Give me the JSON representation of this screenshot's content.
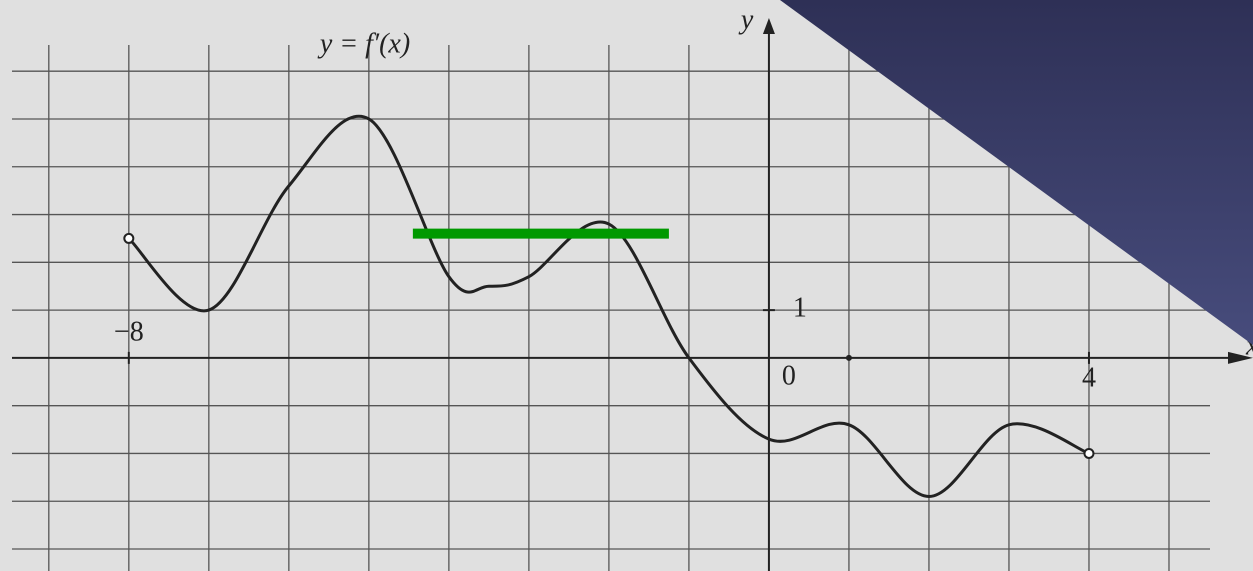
{
  "chart_data": {
    "type": "line",
    "title": "y = f′(x)",
    "x_axis_label": "x",
    "y_axis_label": "y",
    "origin_label": "0",
    "x": [
      -8,
      -7,
      -6,
      -5,
      -4,
      -3.5,
      -3,
      -2,
      -1,
      0,
      1,
      2,
      3,
      4
    ],
    "series": [
      {
        "name": "f′(x)",
        "color": "#222222",
        "values": [
          2.5,
          1,
          3.6,
          5,
          1.7,
          1.5,
          1.7,
          2.8,
          0,
          -1.7,
          -1.4,
          -2.9,
          -1.4,
          -2
        ]
      }
    ],
    "highlight_segment": {
      "x": [
        -4.45,
        -1.25
      ],
      "y": 2.6,
      "color": "#009900"
    },
    "xlim": [
      -9.61,
      6.05
    ],
    "ylim": [
      -4.46,
      7.49
    ],
    "xticks": [
      {
        "value": -8,
        "label": "−8"
      },
      4
    ],
    "yticks": [
      1
    ],
    "grid_x": [
      -9,
      -8,
      -7,
      -6,
      -5,
      -4,
      -3,
      -2,
      -1,
      0,
      1,
      2,
      3,
      4,
      5
    ],
    "grid_y": [
      -4,
      -3,
      -2,
      -1,
      0,
      1,
      2,
      3,
      4,
      5,
      6
    ],
    "grid": true
  }
}
